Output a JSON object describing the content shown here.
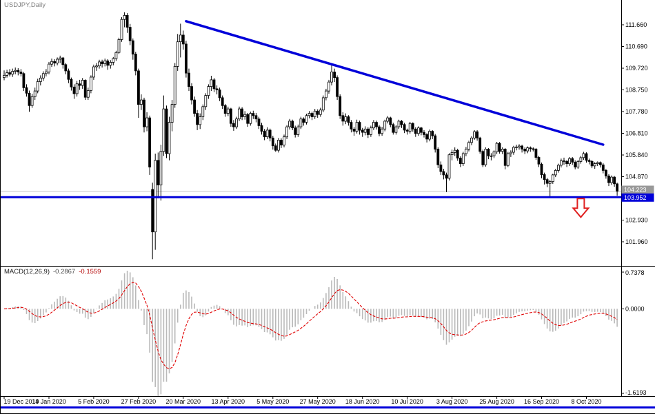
{
  "window_title": "USDJPY,Daily",
  "colors": {
    "object_blue": "#0000d9",
    "bid_line_gray": "#c8c8c8",
    "bid_badge_gray": "#999999",
    "histogram_silver": "#b9b9b9",
    "signal_red": "#e00000",
    "arrow_red": "#e02020",
    "bull_body": "#ffffff",
    "bear_body": "#000000",
    "axis_text": "#000000"
  },
  "chart_data": {
    "type": "candlestick",
    "symbol": "USDJPY",
    "timeframe": "Daily",
    "y_axis_ticks": [
      111.66,
      110.69,
      109.72,
      108.75,
      107.78,
      106.81,
      105.84,
      104.87,
      102.93,
      101.96
    ],
    "x_axis_labels": [
      "19 Dec 2019",
      "14 Jan 2020",
      "5 Feb 2020",
      "27 Feb 2020",
      "20 Mar 2020",
      "13 Apr 2020",
      "5 May 2020",
      "27 May 2020",
      "18 Jun 2020",
      "10 Jul 2020",
      "3 Aug 2020",
      "25 Aug 2020",
      "16 Sep 2020",
      "8 Oct 2020"
    ],
    "x_label_step": 16,
    "current_bid": "104.223",
    "candles": [
      [
        109.3,
        109.62,
        109.18,
        109.4
      ],
      [
        109.4,
        109.65,
        109.3,
        109.52
      ],
      [
        109.52,
        109.68,
        109.35,
        109.45
      ],
      [
        109.45,
        109.7,
        109.33,
        109.58
      ],
      [
        109.58,
        109.75,
        109.45,
        109.62
      ],
      [
        109.62,
        109.72,
        109.4,
        109.55
      ],
      [
        109.55,
        109.68,
        109.35,
        109.48
      ],
      [
        109.48,
        109.55,
        108.7,
        108.85
      ],
      [
        108.85,
        109.0,
        108.45,
        108.6
      ],
      [
        108.6,
        108.72,
        107.77,
        108.05
      ],
      [
        108.05,
        108.58,
        107.95,
        108.45
      ],
      [
        108.45,
        108.85,
        108.3,
        108.7
      ],
      [
        108.7,
        109.25,
        108.6,
        109.12
      ],
      [
        109.12,
        109.4,
        108.95,
        109.28
      ],
      [
        109.28,
        109.58,
        109.15,
        109.48
      ],
      [
        109.48,
        109.68,
        109.35,
        109.55
      ],
      [
        109.55,
        110.0,
        109.45,
        109.9
      ],
      [
        109.9,
        110.15,
        109.78,
        110.02
      ],
      [
        110.02,
        110.12,
        109.8,
        109.95
      ],
      [
        109.95,
        110.2,
        109.85,
        110.12
      ],
      [
        110.12,
        110.28,
        109.95,
        110.18
      ],
      [
        110.18,
        110.22,
        109.7,
        109.88
      ],
      [
        109.88,
        109.95,
        109.45,
        109.6
      ],
      [
        109.6,
        109.7,
        109.05,
        109.22
      ],
      [
        109.22,
        109.3,
        108.72,
        108.88
      ],
      [
        108.88,
        109.0,
        108.35,
        108.58
      ],
      [
        108.58,
        109.15,
        108.45,
        109.02
      ],
      [
        109.02,
        109.2,
        108.75,
        108.95
      ],
      [
        108.95,
        109.28,
        108.8,
        109.18
      ],
      [
        109.18,
        109.22,
        108.3,
        108.42
      ],
      [
        108.42,
        108.85,
        108.3,
        108.72
      ],
      [
        108.72,
        109.4,
        108.6,
        109.32
      ],
      [
        109.32,
        109.88,
        109.2,
        109.78
      ],
      [
        109.78,
        109.95,
        109.6,
        109.82
      ],
      [
        109.82,
        110.1,
        109.7,
        110.0
      ],
      [
        110.0,
        110.1,
        109.75,
        109.92
      ],
      [
        109.92,
        110.15,
        109.8,
        110.05
      ],
      [
        110.05,
        110.12,
        109.65,
        109.85
      ],
      [
        109.85,
        110.08,
        109.7,
        109.98
      ],
      [
        109.98,
        110.22,
        109.85,
        110.15
      ],
      [
        110.15,
        110.5,
        110.05,
        110.42
      ],
      [
        110.42,
        111.08,
        110.35,
        111.0
      ],
      [
        111.0,
        112.0,
        110.9,
        111.9
      ],
      [
        111.9,
        112.22,
        111.55,
        112.08
      ],
      [
        112.08,
        112.18,
        111.3,
        111.55
      ],
      [
        111.55,
        111.7,
        110.75,
        110.95
      ],
      [
        110.95,
        111.05,
        110.1,
        110.35
      ],
      [
        110.35,
        110.45,
        109.4,
        109.6
      ],
      [
        109.6,
        109.7,
        107.5,
        108.1
      ],
      [
        108.1,
        108.55,
        107.85,
        108.3
      ],
      [
        108.3,
        108.4,
        106.85,
        107.1
      ],
      [
        107.1,
        107.75,
        106.9,
        107.5
      ],
      [
        107.5,
        107.6,
        104.95,
        105.3
      ],
      [
        104.3,
        104.6,
        101.18,
        102.4
      ],
      [
        102.4,
        105.9,
        101.6,
        105.6
      ],
      [
        105.6,
        105.95,
        103.9,
        104.5
      ],
      [
        104.5,
        106.3,
        103.8,
        106.0
      ],
      [
        106.0,
        108.5,
        105.8,
        107.9
      ],
      [
        107.9,
        108.05,
        105.7,
        105.9
      ],
      [
        105.9,
        107.55,
        105.6,
        107.3
      ],
      [
        107.3,
        108.3,
        106.9,
        108.1
      ],
      [
        108.1,
        109.95,
        107.95,
        109.8
      ],
      [
        109.8,
        111.25,
        109.6,
        110.9
      ],
      [
        110.9,
        111.71,
        110.2,
        111.2
      ],
      [
        111.2,
        111.4,
        110.55,
        110.8
      ],
      [
        110.8,
        110.95,
        109.3,
        109.5
      ],
      [
        109.5,
        109.7,
        108.7,
        108.9
      ],
      [
        108.9,
        109.05,
        108.1,
        108.3
      ],
      [
        108.3,
        108.45,
        107.55,
        107.7
      ],
      [
        107.7,
        107.85,
        106.95,
        107.2
      ],
      [
        107.2,
        107.7,
        107.0,
        107.55
      ],
      [
        107.55,
        108.1,
        107.4,
        108.0
      ],
      [
        108.0,
        108.6,
        107.85,
        108.5
      ],
      [
        108.5,
        109.0,
        108.35,
        108.9
      ],
      [
        108.9,
        109.38,
        108.7,
        109.2
      ],
      [
        109.2,
        109.28,
        108.65,
        108.8
      ],
      [
        108.8,
        108.95,
        108.55,
        108.75
      ],
      [
        108.75,
        108.85,
        108.25,
        108.4
      ],
      [
        108.4,
        108.5,
        107.9,
        108.05
      ],
      [
        108.05,
        108.12,
        107.55,
        107.7
      ],
      [
        107.7,
        108.0,
        107.58,
        107.9
      ],
      [
        107.9,
        107.95,
        107.1,
        107.25
      ],
      [
        107.25,
        107.4,
        106.92,
        107.1
      ],
      [
        107.1,
        107.55,
        107.0,
        107.45
      ],
      [
        107.45,
        108.0,
        107.35,
        107.9
      ],
      [
        107.9,
        107.98,
        107.4,
        107.55
      ],
      [
        107.55,
        107.8,
        107.42,
        107.65
      ],
      [
        107.65,
        107.72,
        107.1,
        107.25
      ],
      [
        107.25,
        107.78,
        107.15,
        107.7
      ],
      [
        107.7,
        107.82,
        107.45,
        107.6
      ],
      [
        107.6,
        107.72,
        107.3,
        107.45
      ],
      [
        107.45,
        107.55,
        107.0,
        107.15
      ],
      [
        107.15,
        107.28,
        106.75,
        106.9
      ],
      [
        106.9,
        107.0,
        106.5,
        106.65
      ],
      [
        106.65,
        107.08,
        106.55,
        106.95
      ],
      [
        106.95,
        107.02,
        106.45,
        106.6
      ],
      [
        106.6,
        106.7,
        106.08,
        106.25
      ],
      [
        106.25,
        106.35,
        105.98,
        106.05
      ],
      [
        106.05,
        106.6,
        105.95,
        106.5
      ],
      [
        106.5,
        106.58,
        106.15,
        106.28
      ],
      [
        106.28,
        106.75,
        106.18,
        106.65
      ],
      [
        106.65,
        107.18,
        106.55,
        107.1
      ],
      [
        107.1,
        107.45,
        106.98,
        107.35
      ],
      [
        107.35,
        107.42,
        106.95,
        107.05
      ],
      [
        107.05,
        107.15,
        106.62,
        106.75
      ],
      [
        106.75,
        107.2,
        106.65,
        107.1
      ],
      [
        107.1,
        107.55,
        107.0,
        107.45
      ],
      [
        107.45,
        107.52,
        107.15,
        107.3
      ],
      [
        107.3,
        107.68,
        107.2,
        107.6
      ],
      [
        107.6,
        107.8,
        107.48,
        107.7
      ],
      [
        107.7,
        107.78,
        107.4,
        107.55
      ],
      [
        107.55,
        107.9,
        107.45,
        107.8
      ],
      [
        107.8,
        107.88,
        107.5,
        107.65
      ],
      [
        107.65,
        107.95,
        107.55,
        107.85
      ],
      [
        107.85,
        108.5,
        107.75,
        108.4
      ],
      [
        108.4,
        108.8,
        108.28,
        108.7
      ],
      [
        108.7,
        109.2,
        108.58,
        109.1
      ],
      [
        109.1,
        109.85,
        108.95,
        109.55
      ],
      [
        109.55,
        109.7,
        109.1,
        109.3
      ],
      [
        109.3,
        109.4,
        108.3,
        108.45
      ],
      [
        108.45,
        108.55,
        107.45,
        107.6
      ],
      [
        107.6,
        107.75,
        107.15,
        107.35
      ],
      [
        107.35,
        107.7,
        107.22,
        107.55
      ],
      [
        107.55,
        107.62,
        107.15,
        107.3
      ],
      [
        107.3,
        107.4,
        106.85,
        107.0
      ],
      [
        107.0,
        107.1,
        106.7,
        106.9
      ],
      [
        106.9,
        107.42,
        106.8,
        107.3
      ],
      [
        107.3,
        107.38,
        106.75,
        106.95
      ],
      [
        106.95,
        107.05,
        106.65,
        106.85
      ],
      [
        106.85,
        107.12,
        106.72,
        107.0
      ],
      [
        107.0,
        107.08,
        106.6,
        106.75
      ],
      [
        106.75,
        107.15,
        106.65,
        107.05
      ],
      [
        107.05,
        107.4,
        106.95,
        107.3
      ],
      [
        107.3,
        107.38,
        106.98,
        107.1
      ],
      [
        107.1,
        107.18,
        106.68,
        106.8
      ],
      [
        106.8,
        107.1,
        106.7,
        107.0
      ],
      [
        107.0,
        107.42,
        106.9,
        107.35
      ],
      [
        107.35,
        107.58,
        107.25,
        107.5
      ],
      [
        107.5,
        107.55,
        107.08,
        107.2
      ],
      [
        107.2,
        107.28,
        106.75,
        106.85
      ],
      [
        106.85,
        107.18,
        106.75,
        107.1
      ],
      [
        107.1,
        107.42,
        107.0,
        107.35
      ],
      [
        107.35,
        107.4,
        107.05,
        107.2
      ],
      [
        107.2,
        107.28,
        106.82,
        106.95
      ],
      [
        106.95,
        107.02,
        106.75,
        106.9
      ],
      [
        106.9,
        107.32,
        106.8,
        107.25
      ],
      [
        107.25,
        107.3,
        106.88,
        107.0
      ],
      [
        107.0,
        107.08,
        106.65,
        106.8
      ],
      [
        106.8,
        107.12,
        106.7,
        107.05
      ],
      [
        107.05,
        107.1,
        106.72,
        106.85
      ],
      [
        106.85,
        106.95,
        106.62,
        106.75
      ],
      [
        106.75,
        106.82,
        106.4,
        106.55
      ],
      [
        106.55,
        106.98,
        106.45,
        106.9
      ],
      [
        106.9,
        106.95,
        106.55,
        106.7
      ],
      [
        106.7,
        106.78,
        105.95,
        106.1
      ],
      [
        106.1,
        106.18,
        105.25,
        105.4
      ],
      [
        105.4,
        105.55,
        104.95,
        105.1
      ],
      [
        105.1,
        105.22,
        104.75,
        104.95
      ],
      [
        104.95,
        105.05,
        104.18,
        104.8
      ],
      [
        104.8,
        105.92,
        104.7,
        105.85
      ],
      [
        105.85,
        106.08,
        105.6,
        105.95
      ],
      [
        105.95,
        106.18,
        105.8,
        106.05
      ],
      [
        106.05,
        106.12,
        105.58,
        105.7
      ],
      [
        105.7,
        105.78,
        105.3,
        105.45
      ],
      [
        105.45,
        105.98,
        105.35,
        105.9
      ],
      [
        105.9,
        106.2,
        105.78,
        106.1
      ],
      [
        106.1,
        106.48,
        106.0,
        106.4
      ],
      [
        106.4,
        106.68,
        106.28,
        106.6
      ],
      [
        106.6,
        106.95,
        106.52,
        106.88
      ],
      [
        106.88,
        106.95,
        106.48,
        106.6
      ],
      [
        106.6,
        106.65,
        105.9,
        106.0
      ],
      [
        106.0,
        106.08,
        105.3,
        105.4
      ],
      [
        105.4,
        106.18,
        105.32,
        106.1
      ],
      [
        106.1,
        106.15,
        105.65,
        105.8
      ],
      [
        105.8,
        105.92,
        105.6,
        105.8
      ],
      [
        105.8,
        106.05,
        105.7,
        105.98
      ],
      [
        105.98,
        106.42,
        105.88,
        106.36
      ],
      [
        106.36,
        106.42,
        105.9,
        106.0
      ],
      [
        106.0,
        106.18,
        105.88,
        106.1
      ],
      [
        106.1,
        106.15,
        105.2,
        105.37
      ],
      [
        105.37,
        105.98,
        105.3,
        105.9
      ],
      [
        105.9,
        106.05,
        105.75,
        105.96
      ],
      [
        105.96,
        106.25,
        105.85,
        106.18
      ],
      [
        106.18,
        106.3,
        106.05,
        106.2
      ],
      [
        106.2,
        106.32,
        106.08,
        106.24
      ],
      [
        106.24,
        106.3,
        105.95,
        106.1
      ],
      [
        106.1,
        106.18,
        105.88,
        106.02
      ],
      [
        106.02,
        106.22,
        105.92,
        106.16
      ],
      [
        106.16,
        106.22,
        105.98,
        106.12
      ],
      [
        106.12,
        106.18,
        106.0,
        106.1
      ],
      [
        106.1,
        106.15,
        105.62,
        105.73
      ],
      [
        105.73,
        105.8,
        105.3,
        105.43
      ],
      [
        105.43,
        105.5,
        104.8,
        104.96
      ],
      [
        104.96,
        105.05,
        104.52,
        104.74
      ],
      [
        104.74,
        104.82,
        104.4,
        104.57
      ],
      [
        104.57,
        104.72,
        103.98,
        104.65
      ],
      [
        104.65,
        105.0,
        104.55,
        104.95
      ],
      [
        104.95,
        105.22,
        104.85,
        105.15
      ],
      [
        105.15,
        105.45,
        105.05,
        105.38
      ],
      [
        105.38,
        105.68,
        105.28,
        105.58
      ],
      [
        105.58,
        105.72,
        105.4,
        105.55
      ],
      [
        105.55,
        105.62,
        105.3,
        105.45
      ],
      [
        105.45,
        105.75,
        105.35,
        105.68
      ],
      [
        105.68,
        105.75,
        105.4,
        105.52
      ],
      [
        105.52,
        105.6,
        105.2,
        105.3
      ],
      [
        105.3,
        105.62,
        105.22,
        105.55
      ],
      [
        105.55,
        105.8,
        105.45,
        105.72
      ],
      [
        105.72,
        105.98,
        105.62,
        105.9
      ],
      [
        105.9,
        105.96,
        105.5,
        105.6
      ],
      [
        105.6,
        105.68,
        105.42,
        105.55
      ],
      [
        105.55,
        105.62,
        105.25,
        105.35
      ],
      [
        105.35,
        105.52,
        105.22,
        105.45
      ],
      [
        105.45,
        105.55,
        105.35,
        105.5
      ],
      [
        105.5,
        105.55,
        105.28,
        105.4
      ],
      [
        105.4,
        105.48,
        105.02,
        105.15
      ],
      [
        105.15,
        105.22,
        104.78,
        104.9
      ],
      [
        104.9,
        104.98,
        104.45,
        104.6
      ],
      [
        104.6,
        104.92,
        104.5,
        104.85
      ],
      [
        104.85,
        104.9,
        104.42,
        104.55
      ],
      [
        104.55,
        104.6,
        104.02,
        104.22
      ]
    ],
    "overlays": {
      "trendline": {
        "from_index": 65,
        "from_price": 111.82,
        "to_index": 214,
        "to_price": 106.3
      },
      "horizontal_line": {
        "price": "103.952"
      },
      "down_arrow": {
        "index": 206,
        "price": 103.55
      }
    },
    "indicator": {
      "name": "MACD",
      "label": "MACD(12,26,9)",
      "fast": 12,
      "slow": 26,
      "signal_period": 9,
      "display_values": {
        "macd": "-0.2867",
        "signal": "-0.1559"
      },
      "y_axis_ticks": [
        "0.7378",
        "0.0000",
        "-1.6193"
      ]
    }
  }
}
